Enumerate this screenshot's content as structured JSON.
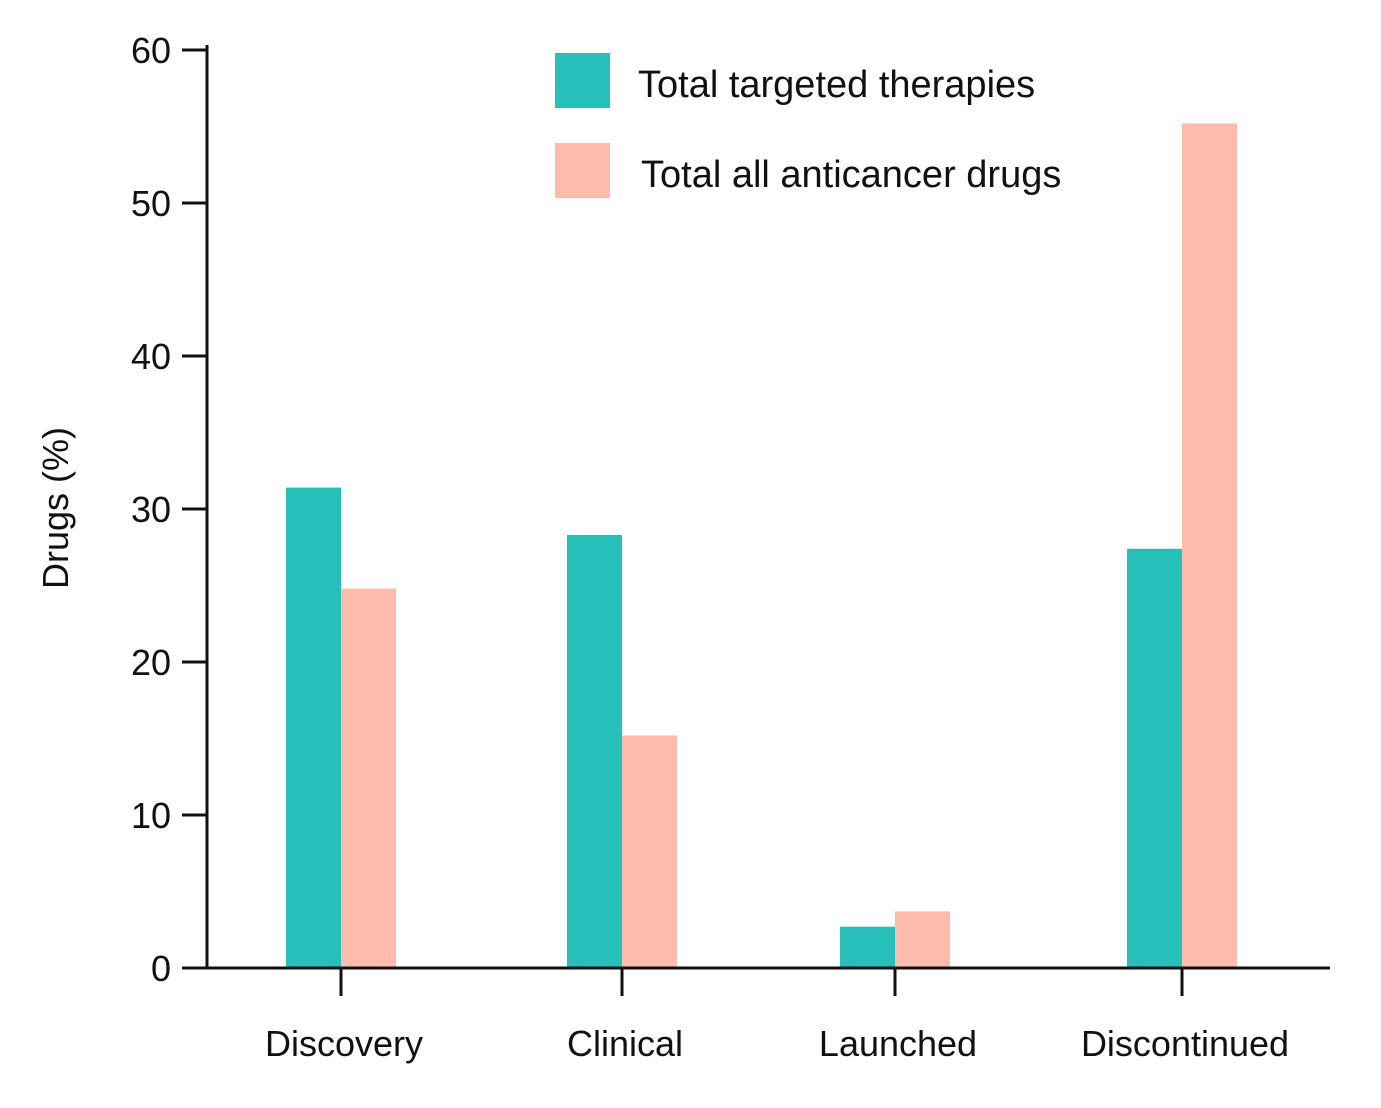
{
  "chart_data": {
    "type": "bar",
    "title": "",
    "xlabel": "",
    "ylabel": "Drugs (%)",
    "categories": [
      "Discovery",
      "Clinical",
      "Launched",
      "Discontinued"
    ],
    "series": [
      {
        "name": "Total targeted therapies",
        "color": "#26BFBA",
        "values": [
          31.4,
          28.3,
          2.7,
          27.4
        ]
      },
      {
        "name": "Total all anticancer drugs",
        "color": "#FFBCAD",
        "values": [
          24.8,
          15.2,
          3.7,
          55.2
        ]
      }
    ],
    "ylim": [
      0,
      60
    ],
    "yticks": [
      0,
      10,
      20,
      30,
      40,
      50,
      60
    ],
    "grid": false,
    "legend_position": "top-right"
  }
}
